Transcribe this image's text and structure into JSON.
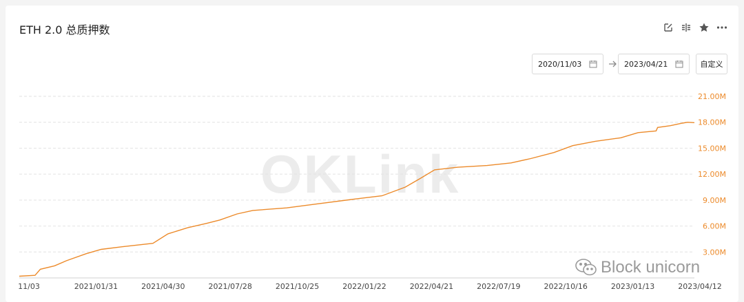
{
  "header": {
    "title": "ETH 2.0 总质押数"
  },
  "toolbar": {
    "icons": [
      "edit-icon",
      "split-icon",
      "star-icon",
      "more-icon"
    ]
  },
  "date_range": {
    "start": "2020/11/03",
    "end": "2023/04/21",
    "custom_label": "自定义"
  },
  "watermark": {
    "text": "OKLink"
  },
  "brand": {
    "text": "Block unicorn"
  },
  "colors": {
    "line": "#ec8a2a",
    "grid": "#e2e2e2",
    "ytick": "#ec8a2a"
  },
  "chart_data": {
    "type": "line",
    "title": "ETH 2.0 总质押数",
    "x_ticks": [
      "11/03",
      "2021/01/31",
      "2021/04/30",
      "2021/07/28",
      "2021/10/25",
      "2022/01/22",
      "2022/04/21",
      "2022/07/19",
      "2022/10/16",
      "2023/01/13",
      "2023/04/12"
    ],
    "y_ticks": [
      "3.00M",
      "6.00M",
      "9.00M",
      "12.00M",
      "15.00M",
      "18.00M",
      "21.00M"
    ],
    "ylim": [
      0,
      21000000
    ],
    "grid": true,
    "legend": "none",
    "series": [
      {
        "x": [
          "2020-11-03",
          "2020-11-24",
          "2020-12-01",
          "2020-12-20",
          "2021-01-05",
          "2021-01-31",
          "2021-02-20",
          "2021-03-20",
          "2021-04-30",
          "2021-05-20",
          "2021-06-15",
          "2021-07-10",
          "2021-07-28",
          "2021-08-20",
          "2021-09-10",
          "2021-10-25",
          "2021-11-30",
          "2022-01-22",
          "2022-03-01",
          "2022-04-01",
          "2022-04-21",
          "2022-05-10",
          "2022-06-10",
          "2022-07-19",
          "2022-08-20",
          "2022-09-15",
          "2022-10-16",
          "2022-11-10",
          "2022-12-10",
          "2023-01-13",
          "2023-02-05",
          "2023-03-01",
          "2023-03-03",
          "2023-03-20",
          "2023-04-05",
          "2023-04-12",
          "2023-04-21"
        ],
        "y": [
          200000,
          300000,
          1000000,
          1400000,
          2000000,
          2800000,
          3300000,
          3600000,
          4000000,
          5100000,
          5800000,
          6300000,
          6700000,
          7400000,
          7800000,
          8100000,
          8500000,
          9100000,
          9500000,
          10500000,
          11500000,
          12500000,
          12800000,
          13000000,
          13300000,
          13800000,
          14500000,
          15300000,
          15800000,
          16200000,
          16800000,
          17000000,
          17400000,
          17600000,
          17900000,
          18000000,
          17950000
        ]
      }
    ]
  }
}
